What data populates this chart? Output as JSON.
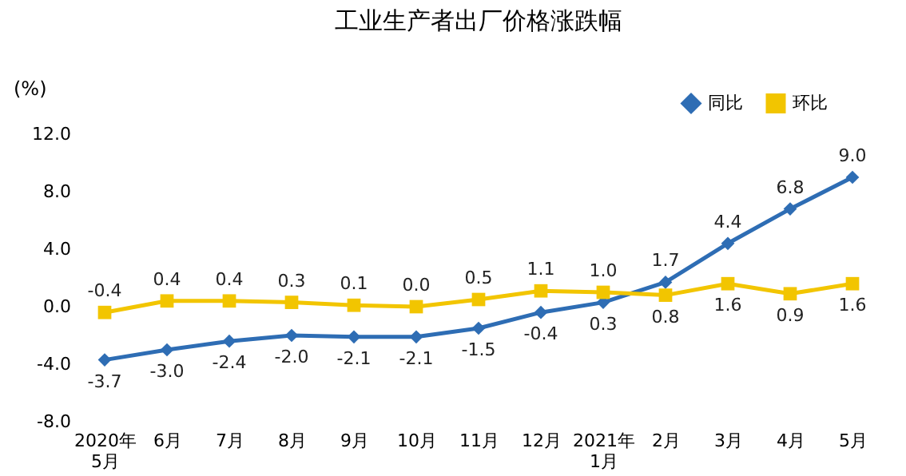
{
  "chart_data": {
    "type": "line",
    "title": "工业生产者出厂价格涨跌幅",
    "ylabel": "(%)",
    "categories": [
      "2020年\n5月",
      "6月",
      "7月",
      "8月",
      "9月",
      "10月",
      "11月",
      "12月",
      "2021年\n1月",
      "2月",
      "3月",
      "4月",
      "5月"
    ],
    "series": [
      {
        "name": "同比",
        "color": "#2e6db4",
        "marker": "diamond",
        "values": [
          -3.7,
          -3.0,
          -2.4,
          -2.0,
          -2.1,
          -2.1,
          -1.5,
          -0.4,
          0.3,
          1.7,
          4.4,
          6.8,
          9.0
        ],
        "value_labels": [
          "-3.7",
          "-3.0",
          "-2.4",
          "-2.0",
          "-2.1",
          "-2.1",
          "-1.5",
          "-0.4",
          "0.3",
          "1.7",
          "4.4",
          "6.8",
          "9.0"
        ]
      },
      {
        "name": "环比",
        "color": "#f2c500",
        "marker": "square",
        "values": [
          -0.4,
          0.4,
          0.4,
          0.3,
          0.1,
          0.0,
          0.5,
          1.1,
          1.0,
          0.8,
          1.6,
          0.9,
          1.6
        ],
        "value_labels": [
          "-0.4",
          "0.4",
          "0.4",
          "0.3",
          "0.1",
          "0.0",
          "0.5",
          "1.1",
          "1.0",
          "0.8",
          "1.6",
          "0.9",
          "1.6"
        ]
      }
    ],
    "ylim": [
      -8,
      12
    ],
    "yticks": [
      {
        "value": -8,
        "label": "-8.0"
      },
      {
        "value": -4,
        "label": "-4.0"
      },
      {
        "value": 0,
        "label": "0.0"
      },
      {
        "value": 4,
        "label": "4.0"
      },
      {
        "value": 8,
        "label": "8.0"
      },
      {
        "value": 12,
        "label": "12.0"
      }
    ],
    "grid": false,
    "legend": "top right"
  }
}
